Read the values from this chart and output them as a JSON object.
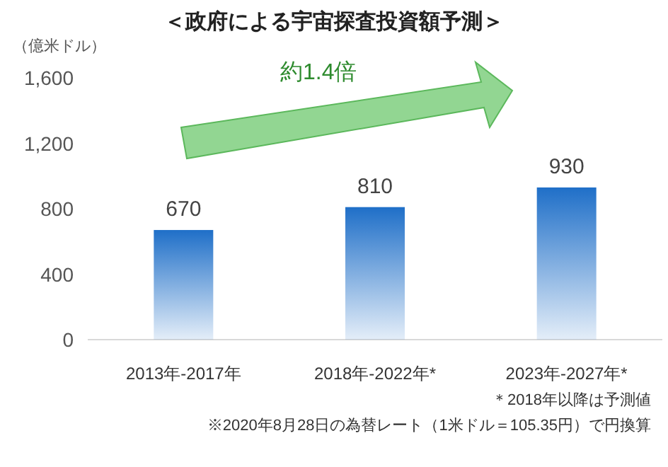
{
  "chart_data": {
    "type": "bar",
    "title": "＜政府による宇宙探査投資額予測＞",
    "ylabel": "（億米ドル）",
    "categories": [
      "2013年-2017年",
      "2018年-2022年*",
      "2023年-2027年*"
    ],
    "series": [
      {
        "color": "#1f6fc8",
        "values": [
          670,
          810,
          930
        ]
      }
    ],
    "ylim": [
      0,
      1600
    ],
    "yticks": [
      0,
      400,
      800,
      {
        "value": 1200,
        "label": "1,200"
      },
      {
        "value": 1600,
        "label": "1,600"
      }
    ],
    "data_labels": true,
    "grid": false,
    "annotations": [
      "約1.4倍",
      "＊2018年以降は予測値",
      "※2020年8月28日の為替レート（1米ドル＝105.35円）で円換算"
    ]
  }
}
